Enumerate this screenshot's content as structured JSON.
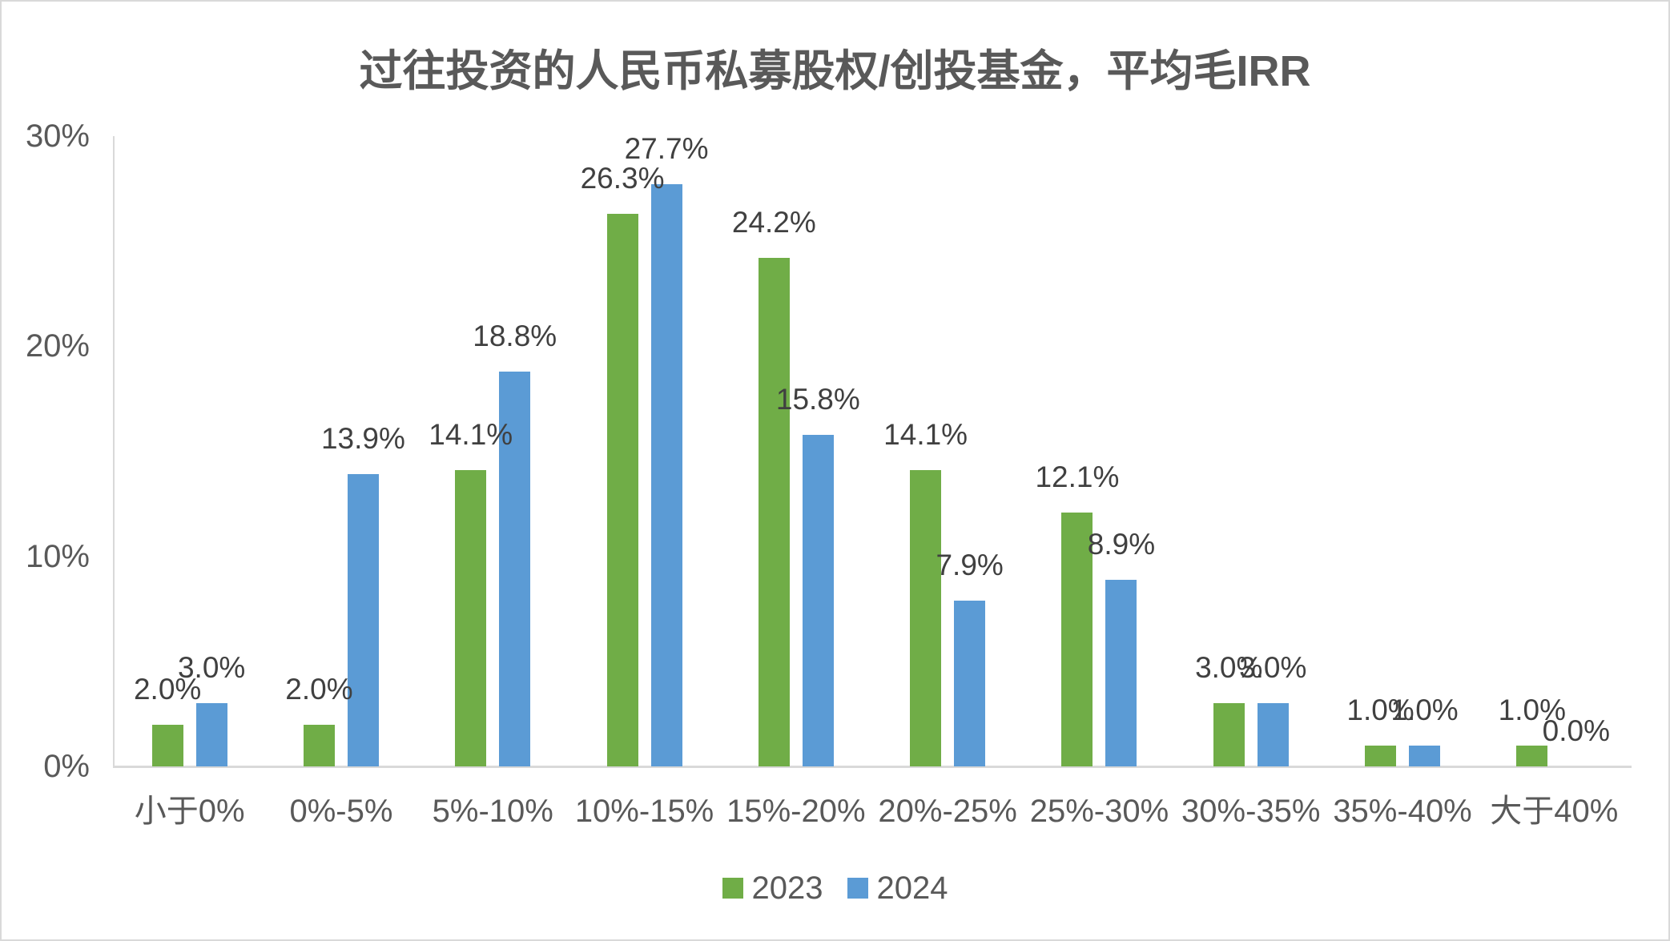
{
  "chart_data": {
    "type": "bar",
    "title": "过往投资的人民币私募股权/创投基金，平均毛IRR",
    "categories": [
      "小于0%",
      "0%-5%",
      "5%-10%",
      "10%-15%",
      "15%-20%",
      "20%-25%",
      "25%-30%",
      "30%-35%",
      "35%-40%",
      "大于40%"
    ],
    "series": [
      {
        "name": "2023",
        "color": "#70AD47",
        "values": [
          2.0,
          2.0,
          14.1,
          26.3,
          24.2,
          14.1,
          12.1,
          3.0,
          1.0,
          1.0
        ],
        "labels": [
          "2.0%",
          "2.0%",
          "14.1%",
          "26.3%",
          "24.2%",
          "14.1%",
          "12.1%",
          "3.0%",
          "1.0%",
          "1.0%"
        ]
      },
      {
        "name": "2024",
        "color": "#5B9BD5",
        "values": [
          3.0,
          13.9,
          18.8,
          27.7,
          15.8,
          7.9,
          8.9,
          3.0,
          1.0,
          0.0
        ],
        "labels": [
          "3.0%",
          "13.9%",
          "18.8%",
          "27.7%",
          "15.8%",
          "7.9%",
          "8.9%",
          "3.0%",
          "1.0%",
          "0.0%"
        ]
      }
    ],
    "xlabel": "",
    "ylabel": "",
    "ylim": [
      0,
      30
    ],
    "yticks": [
      {
        "value": 0,
        "label": "0%"
      },
      {
        "value": 10,
        "label": "10%"
      },
      {
        "value": 20,
        "label": "20%"
      },
      {
        "value": 30,
        "label": "30%"
      }
    ],
    "grid": false,
    "legend_position": "bottom",
    "text_colors": {
      "title": "#595959",
      "axis_labels": "#595959",
      "data_labels": "#404040"
    },
    "axis_line_color": "#d9d9d9"
  }
}
